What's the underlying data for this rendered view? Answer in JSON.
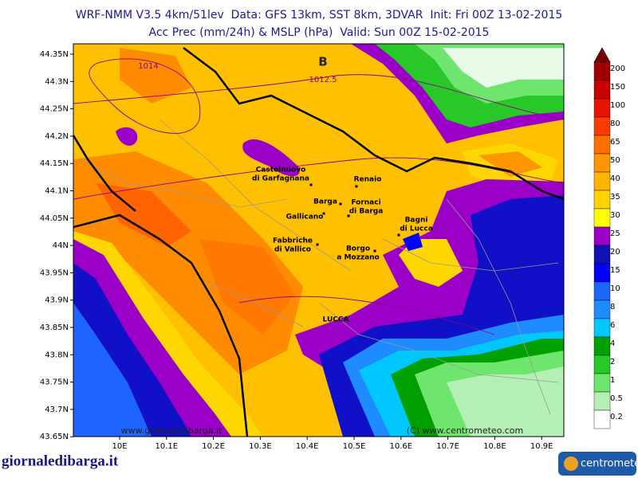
{
  "header": {
    "title": "WRF-NMM V3.5 4km/51lev  Data: GFS 13km, SST 8km, 3DVAR  Init: Fri 00Z 13-02-2015",
    "subtitle": "Acc Prec (mm/24h) & MSLP (hPa)  Valid: Sun 00Z 15-02-2015"
  },
  "map": {
    "lat_labels": [
      "44.35N",
      "44.3N",
      "44.25N",
      "44.2N",
      "44.15N",
      "44.1N",
      "44.05N",
      "44N",
      "43.95N",
      "43.9N",
      "43.85N",
      "43.8N",
      "43.75N",
      "43.7N",
      "43.65N"
    ],
    "lon_labels": [
      "10E",
      "10.1E",
      "10.2E",
      "10.3E",
      "10.4E",
      "10.5E",
      "10.6E",
      "10.7E",
      "10.8E",
      "10.9E"
    ],
    "places": [
      {
        "lines": [
          "Castelnuovo",
          "di Garfagnana"
        ]
      },
      {
        "lines": [
          "Renaio"
        ]
      },
      {
        "lines": [
          "Barga"
        ]
      },
      {
        "lines": [
          "Fornaci",
          "di Barga"
        ]
      },
      {
        "lines": [
          "Gallicano"
        ]
      },
      {
        "lines": [
          "Bagni",
          "di Lucca"
        ]
      },
      {
        "lines": [
          "Fabbriche",
          "di Vallico"
        ]
      },
      {
        "lines": [
          "Borgo",
          "a Mozzano"
        ]
      },
      {
        "lines": [
          "LUCCA"
        ]
      }
    ],
    "isobars": [
      "1014",
      "1012.5"
    ],
    "low_marker": "B",
    "credits": [
      "www.giornaledibarga.it",
      "(C) www.centrometeo.com"
    ]
  },
  "legend": {
    "labels": [
      "200",
      "150",
      "100",
      "80",
      "65",
      "50",
      "40",
      "35",
      "30",
      "25",
      "20",
      "15",
      "10",
      "8",
      "6",
      "4",
      "2",
      "1",
      "0.5",
      "0.2"
    ]
  },
  "footer": {
    "left_logo": "giornaledibarga.it",
    "right_logo": "centrometeo"
  }
}
